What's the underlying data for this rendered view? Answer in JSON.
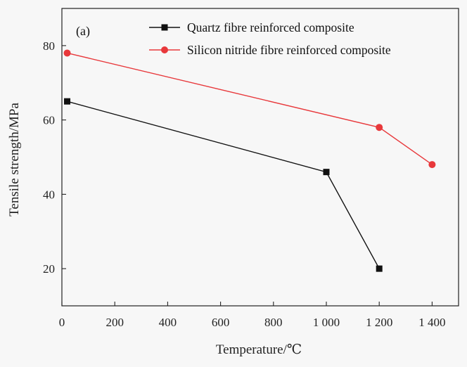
{
  "chart_data": {
    "type": "line",
    "panel_label": "(a)",
    "xlabel": "Temperature/℃",
    "ylabel": "Tensile strength/MPa",
    "xlim": [
      0,
      1500
    ],
    "ylim": [
      10,
      90
    ],
    "x_ticks": [
      0,
      200,
      400,
      600,
      800,
      1000,
      1200,
      1400
    ],
    "x_tick_labels": [
      "0",
      "200",
      "400",
      "600",
      "800",
      "1 000",
      "1 200",
      "1 400"
    ],
    "y_ticks": [
      20,
      40,
      60,
      80
    ],
    "y_tick_labels": [
      "20",
      "40",
      "60",
      "80"
    ],
    "grid": false,
    "legend_position": "top-right",
    "series": [
      {
        "name": "Quartz fibre reinforced composite",
        "color": "#111111",
        "marker": "square",
        "x": [
          20,
          1000,
          1200
        ],
        "y": [
          65,
          46,
          20
        ]
      },
      {
        "name": "Silicon nitride fibre reinforced composite",
        "color": "#e8383b",
        "marker": "circle",
        "x": [
          20,
          1200,
          1400
        ],
        "y": [
          78,
          58,
          48
        ]
      }
    ]
  }
}
